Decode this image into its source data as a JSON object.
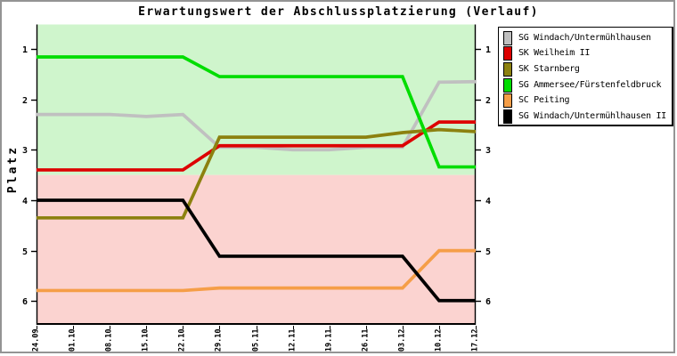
{
  "title": "Erwartungswert der Abschlussplatzierung (Verlauf)",
  "chart_data": {
    "type": "line",
    "title": "Erwartungswert der Abschlussplatzierung (Verlauf)",
    "ylabel": "Platz",
    "x": [
      "24.09",
      "01.10",
      "08.10",
      "15.10",
      "22.10",
      "29.10",
      "05.11",
      "12.11",
      "19.11",
      "26.11",
      "03.12",
      "10.12",
      "17.12"
    ],
    "y_ticks": [
      1,
      2,
      3,
      4,
      5,
      6
    ],
    "ylim": [
      0.5,
      6.5
    ],
    "y_inverted": true,
    "legend_position": "top-right",
    "grid": false,
    "background_bands": [
      {
        "from": 0.5,
        "to": 3.5,
        "color": "#cff5cc"
      },
      {
        "from": 3.5,
        "to": 6.5,
        "color": "#fbd3d0"
      }
    ],
    "series": [
      {
        "name": "SG Windach/Untermühlhausen",
        "color": "#c0c0c0",
        "values": [
          2.3,
          2.3,
          2.3,
          2.34,
          2.3,
          2.95,
          2.95,
          3.0,
          3.0,
          2.95,
          2.95,
          1.66,
          1.65
        ]
      },
      {
        "name": "SK Weilheim II",
        "color": "#dd0000",
        "values": [
          3.4,
          3.4,
          3.4,
          3.4,
          3.4,
          2.92,
          2.92,
          2.92,
          2.92,
          2.92,
          2.92,
          2.45,
          2.45
        ]
      },
      {
        "name": "SK Starnberg",
        "color": "#8c810f",
        "values": [
          4.35,
          4.35,
          4.35,
          4.35,
          4.35,
          2.75,
          2.75,
          2.75,
          2.75,
          2.75,
          2.66,
          2.6,
          2.64
        ]
      },
      {
        "name": "SG Ammersee/Fürstenfeldbruck",
        "color": "#00dd00",
        "values": [
          1.16,
          1.16,
          1.16,
          1.16,
          1.16,
          1.55,
          1.55,
          1.55,
          1.55,
          1.55,
          1.55,
          3.34,
          3.34
        ]
      },
      {
        "name": "SC Peiting",
        "color": "#f59e48",
        "values": [
          5.79,
          5.79,
          5.79,
          5.79,
          5.79,
          5.74,
          5.74,
          5.74,
          5.74,
          5.74,
          5.74,
          5.0,
          5.0
        ]
      },
      {
        "name": "SG Windach/Untermühlhausen II",
        "color": "#000000",
        "values": [
          4.0,
          4.0,
          4.0,
          4.0,
          4.0,
          5.11,
          5.11,
          5.11,
          5.11,
          5.11,
          5.11,
          5.99,
          5.99
        ]
      }
    ]
  }
}
